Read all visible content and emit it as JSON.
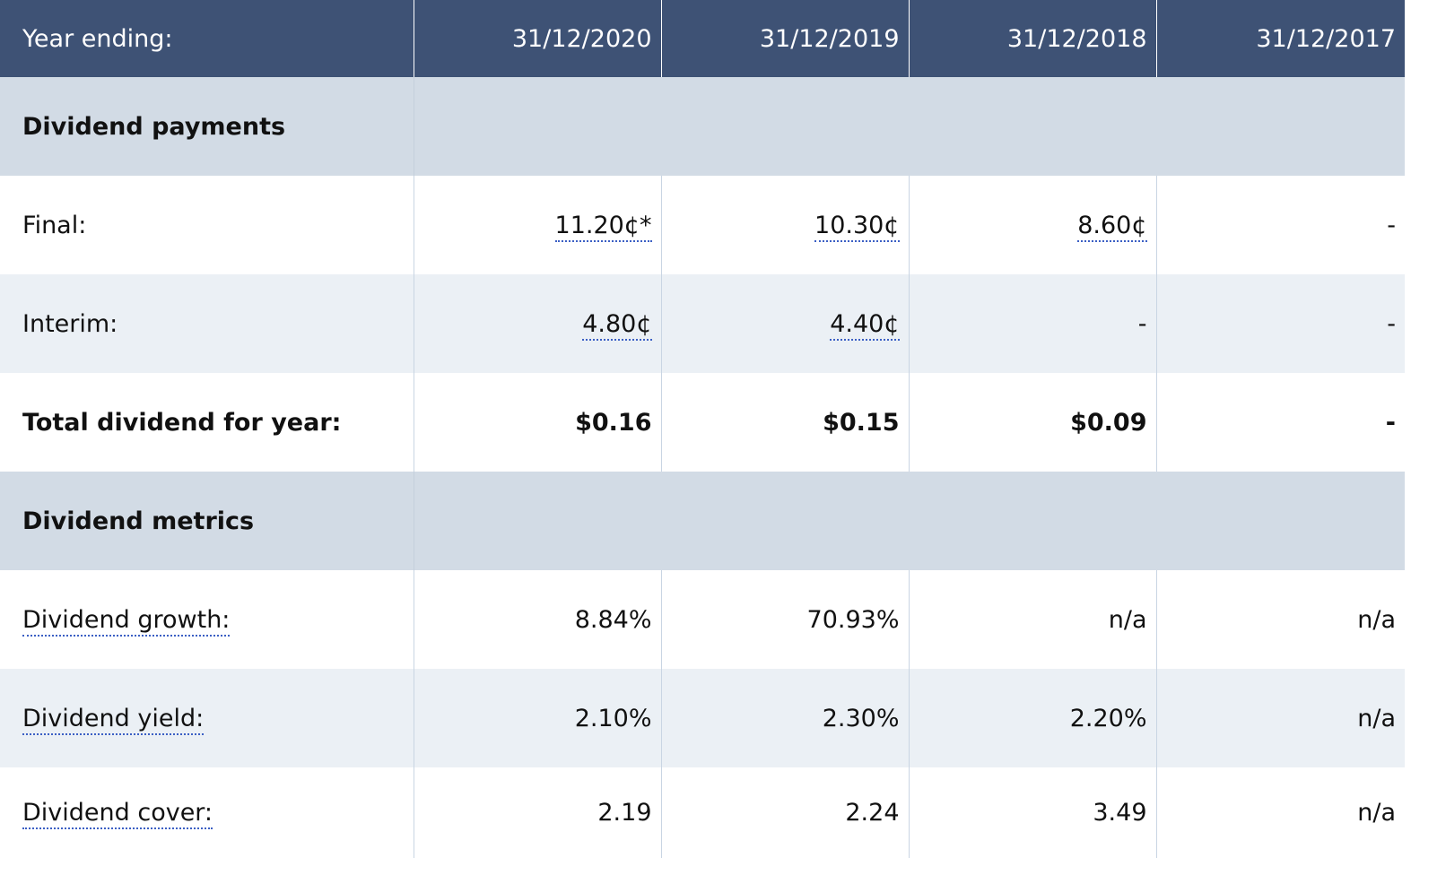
{
  "header": {
    "label": "Year ending:",
    "years": [
      "31/12/2020",
      "31/12/2019",
      "31/12/2018",
      "31/12/2017"
    ]
  },
  "sections": {
    "payments": {
      "title": "Dividend payments"
    },
    "metrics": {
      "title": "Dividend metrics"
    }
  },
  "rows": {
    "final": {
      "label": "Final:",
      "values": [
        "11.20¢*",
        "10.30¢",
        "8.60¢",
        "-"
      ]
    },
    "interim": {
      "label": "Interim:",
      "values": [
        "4.80¢",
        "4.40¢",
        "-",
        "-"
      ]
    },
    "total": {
      "label": "Total dividend for year:",
      "values": [
        "$0.16",
        "$0.15",
        "$0.09",
        "-"
      ]
    },
    "growth": {
      "label": "Dividend growth:",
      "values": [
        "8.84%",
        "70.93%",
        "n/a",
        "n/a"
      ]
    },
    "yield": {
      "label": "Dividend yield:",
      "values": [
        "2.10%",
        "2.30%",
        "2.20%",
        "n/a"
      ]
    },
    "cover": {
      "label": "Dividend cover:",
      "values": [
        "2.19",
        "2.24",
        "3.49",
        "n/a"
      ]
    }
  },
  "colors": {
    "header_bg": "#3e5275",
    "section_bg": "#d2dbe5",
    "alt_row_bg": "#ebf0f5",
    "link_underline": "#3b5fc4"
  }
}
